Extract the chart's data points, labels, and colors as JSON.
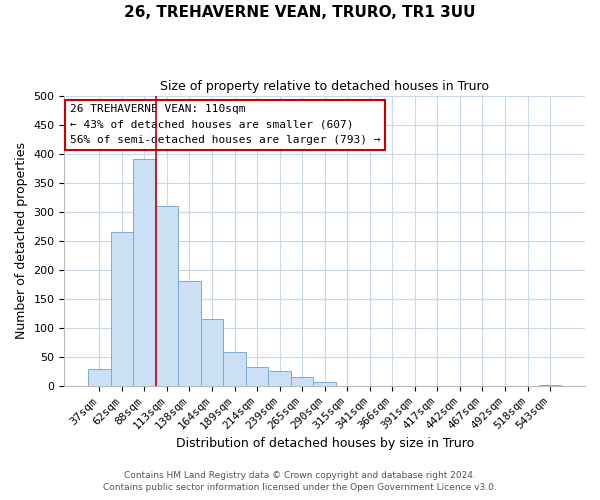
{
  "title": "26, TREHAVERNE VEAN, TRURO, TR1 3UU",
  "subtitle": "Size of property relative to detached houses in Truro",
  "xlabel": "Distribution of detached houses by size in Truro",
  "ylabel": "Number of detached properties",
  "categories": [
    "37sqm",
    "62sqm",
    "88sqm",
    "113sqm",
    "138sqm",
    "164sqm",
    "189sqm",
    "214sqm",
    "239sqm",
    "265sqm",
    "290sqm",
    "315sqm",
    "341sqm",
    "366sqm",
    "391sqm",
    "417sqm",
    "442sqm",
    "467sqm",
    "492sqm",
    "518sqm",
    "543sqm"
  ],
  "values": [
    30,
    265,
    390,
    310,
    180,
    115,
    58,
    33,
    26,
    15,
    7,
    0,
    0,
    0,
    0,
    0,
    0,
    0,
    0,
    0,
    2
  ],
  "bar_color": "#cce0f5",
  "bar_edge_color": "#7aadd4",
  "vline_color": "#cc0000",
  "vline_x_index": 2.5,
  "annotation_text_line1": "26 TREHAVERNE VEAN: 110sqm",
  "annotation_text_line2": "← 43% of detached houses are smaller (607)",
  "annotation_text_line3": "56% of semi-detached houses are larger (793) →",
  "ylim": [
    0,
    500
  ],
  "yticks": [
    0,
    50,
    100,
    150,
    200,
    250,
    300,
    350,
    400,
    450,
    500
  ],
  "background_color": "#ffffff",
  "grid_color": "#c8d8e8",
  "footer_line1": "Contains HM Land Registry data © Crown copyright and database right 2024.",
  "footer_line2": "Contains public sector information licensed under the Open Government Licence v3.0.",
  "title_fontsize": 11,
  "subtitle_fontsize": 9,
  "xlabel_fontsize": 9,
  "ylabel_fontsize": 9,
  "tick_fontsize": 8,
  "annotation_fontsize": 8,
  "footer_fontsize": 6.5
}
